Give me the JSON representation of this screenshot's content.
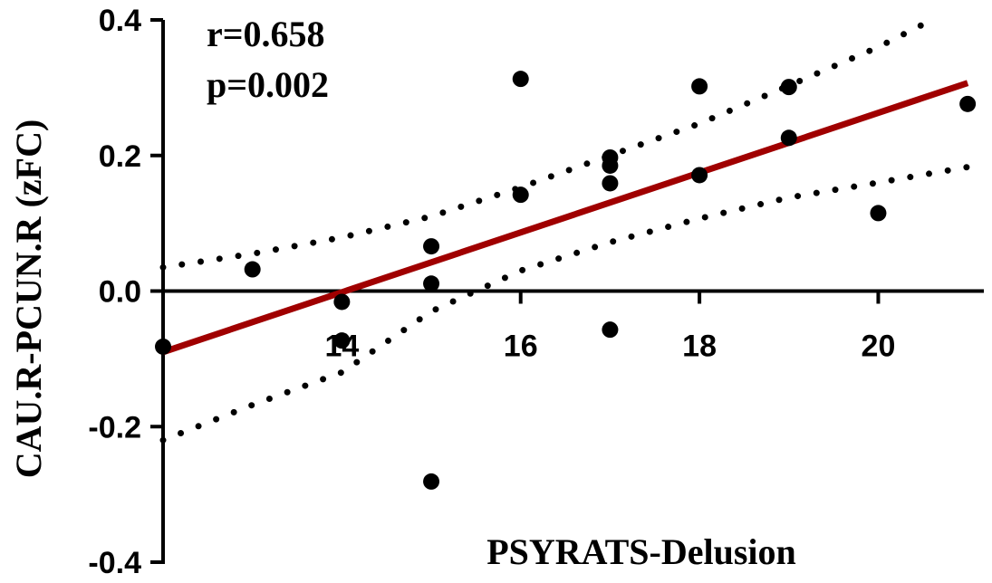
{
  "chart_data": {
    "type": "scatter",
    "title": "",
    "xlabel": "PSYRATS-Delusion",
    "ylabel": "CAU.R-PCUN.R (zFC)",
    "xlim": [
      12,
      21.1
    ],
    "ylim": [
      -0.4,
      0.4
    ],
    "x_ticks": [
      14,
      16,
      18,
      20
    ],
    "x_tick_labels": [
      "14",
      "16",
      "18",
      "20"
    ],
    "y_ticks": [
      -0.4,
      -0.2,
      0.0,
      0.2,
      0.4
    ],
    "y_tick_labels": [
      "-0.4",
      "-0.2",
      "0.0",
      "0.2",
      "0.4"
    ],
    "annotations": [
      "r=0.658",
      "p=0.002"
    ],
    "grid": false,
    "point_color": "#000000",
    "fit_color": "#a00000",
    "ci_color": "#000000",
    "points": [
      {
        "x": 12,
        "y": -0.082
      },
      {
        "x": 13,
        "y": 0.032
      },
      {
        "x": 14,
        "y": -0.016
      },
      {
        "x": 14,
        "y": -0.073
      },
      {
        "x": 15,
        "y": 0.066
      },
      {
        "x": 15,
        "y": 0.011
      },
      {
        "x": 15,
        "y": -0.281
      },
      {
        "x": 16,
        "y": 0.313
      },
      {
        "x": 16,
        "y": 0.142
      },
      {
        "x": 17,
        "y": 0.197
      },
      {
        "x": 17,
        "y": 0.185
      },
      {
        "x": 17,
        "y": 0.159
      },
      {
        "x": 17,
        "y": -0.057
      },
      {
        "x": 18,
        "y": 0.302
      },
      {
        "x": 18,
        "y": 0.171
      },
      {
        "x": 19,
        "y": 0.301
      },
      {
        "x": 19,
        "y": 0.226
      },
      {
        "x": 20,
        "y": 0.115
      },
      {
        "x": 21,
        "y": 0.276
      }
    ],
    "fit_line": [
      {
        "x": 12,
        "y": -0.09
      },
      {
        "x": 21,
        "y": 0.307
      }
    ],
    "ci_upper": [
      {
        "x": 12,
        "y": 0.035
      },
      {
        "x": 13,
        "y": 0.055
      },
      {
        "x": 14,
        "y": 0.079
      },
      {
        "x": 15,
        "y": 0.11
      },
      {
        "x": 16,
        "y": 0.153
      },
      {
        "x": 17,
        "y": 0.2
      },
      {
        "x": 18,
        "y": 0.247
      },
      {
        "x": 19,
        "y": 0.303
      },
      {
        "x": 20,
        "y": 0.36
      },
      {
        "x": 20.6,
        "y": 0.4
      }
    ],
    "ci_lower": [
      {
        "x": 12,
        "y": -0.22
      },
      {
        "x": 13,
        "y": -0.168
      },
      {
        "x": 14,
        "y": -0.12
      },
      {
        "x": 15,
        "y": -0.03
      },
      {
        "x": 16,
        "y": 0.03
      },
      {
        "x": 17,
        "y": 0.072
      },
      {
        "x": 18,
        "y": 0.107
      },
      {
        "x": 19,
        "y": 0.138
      },
      {
        "x": 20,
        "y": 0.16
      },
      {
        "x": 21,
        "y": 0.183
      }
    ]
  }
}
